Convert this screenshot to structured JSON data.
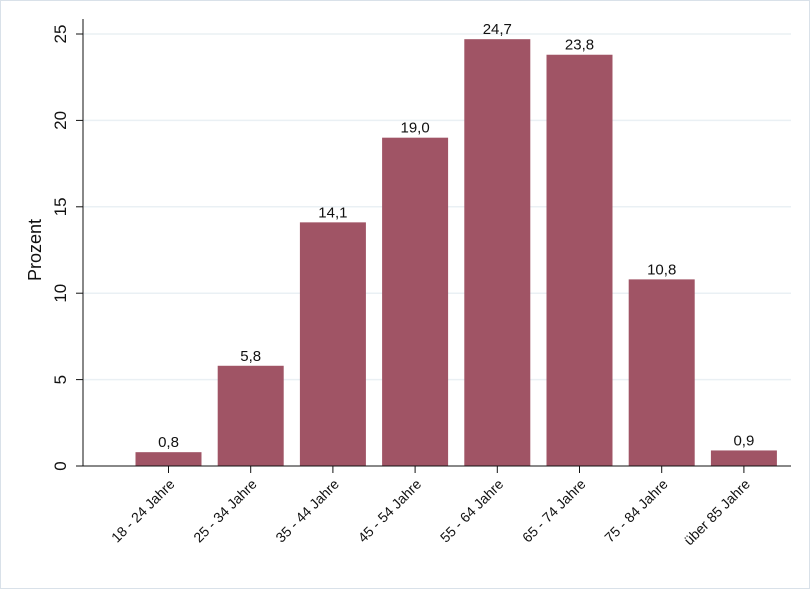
{
  "chart_data": {
    "type": "bar",
    "categories": [
      "18 - 24 Jahre",
      "25 - 34 Jahre",
      "35 - 44 Jahre",
      "45 - 54 Jahre",
      "55 - 64 Jahre",
      "65 - 74 Jahre",
      "75 - 84 Jahre",
      "über 85 Jahre"
    ],
    "values": [
      0.8,
      5.8,
      14.1,
      19.0,
      24.7,
      23.8,
      10.8,
      0.9
    ],
    "data_labels": [
      "0,8",
      "5,8",
      "14,1",
      "19,0",
      "24,7",
      "23,8",
      "10,8",
      "0,9"
    ],
    "title": "",
    "xlabel": "",
    "ylabel": "Prozent",
    "ylim": [
      0,
      25
    ],
    "yticks": [
      0,
      5,
      10,
      15,
      20,
      25
    ],
    "grid": true,
    "legend": "none",
    "bar_color": "#a05465",
    "grid_color": "#eaf0f4",
    "border_color": "#d9e1e9"
  }
}
